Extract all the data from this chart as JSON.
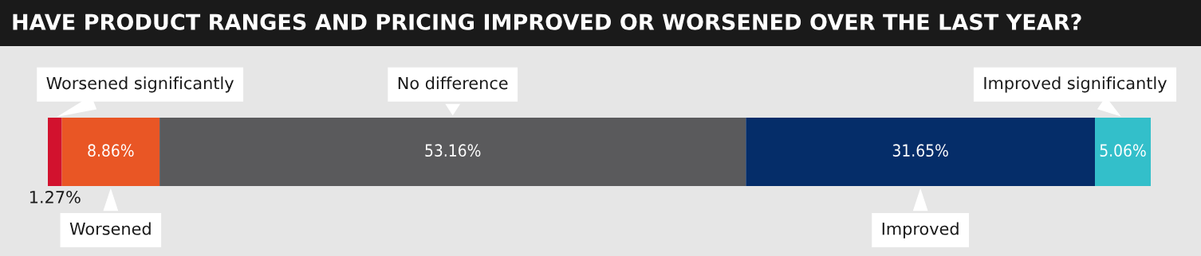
{
  "chart_data": {
    "type": "bar",
    "orientation": "horizontal",
    "stacked": true,
    "title": "HAVE PRODUCT RANGES AND PRICING IMPROVED OR WORSENED OVER THE LAST YEAR?",
    "categories": [
      null
    ],
    "xlim": [
      0,
      100
    ],
    "tick_labels": false,
    "series": [
      {
        "name": "Worsened significantly",
        "color": "#d2122e",
        "values": [
          1.27
        ],
        "value_labels": [
          "1.27%"
        ]
      },
      {
        "name": "Worsened",
        "color": "#e95625",
        "values": [
          8.86
        ],
        "value_labels": [
          "8.86%"
        ]
      },
      {
        "name": "No difference",
        "color": "#5a5a5c",
        "values": [
          53.16
        ],
        "value_labels": [
          "53.16%"
        ]
      },
      {
        "name": "Improved",
        "color": "#052d69",
        "values": [
          31.65
        ],
        "value_labels": [
          "31.65%"
        ]
      },
      {
        "name": "Improved significantly",
        "color": "#33bfca",
        "values": [
          5.06
        ],
        "value_labels": [
          "5.06%"
        ]
      }
    ]
  }
}
